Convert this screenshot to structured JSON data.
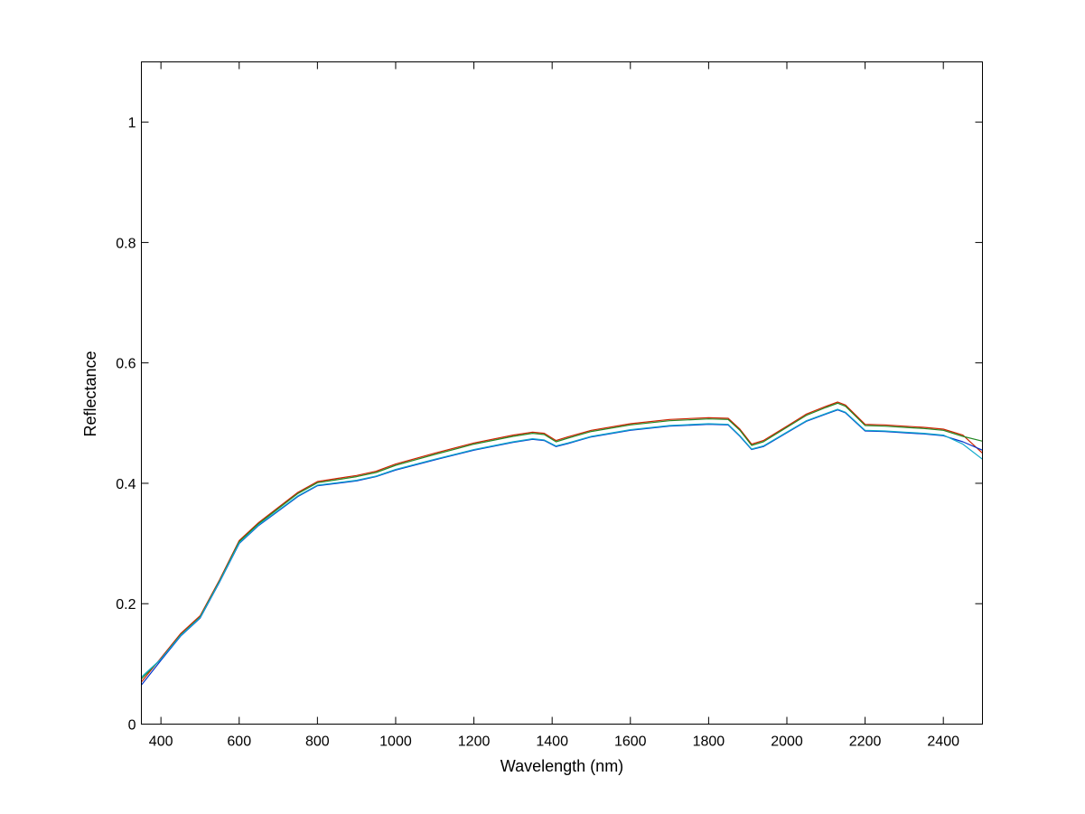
{
  "chart_data": {
    "type": "line",
    "title": "",
    "xlabel": "Wavelength (nm)",
    "ylabel": "Reflectance",
    "xlim": [
      350,
      2500
    ],
    "ylim": [
      0,
      1.1
    ],
    "x_ticks": [
      400,
      600,
      800,
      1000,
      1200,
      1400,
      1600,
      1800,
      2000,
      2200,
      2400
    ],
    "y_ticks": [
      0,
      0.2,
      0.4,
      0.6,
      0.8,
      1
    ],
    "y_tick_labels": [
      "0",
      "0.2",
      "0.4",
      "0.6",
      "0.8",
      "1"
    ],
    "grid": false,
    "legend": "none",
    "x": [
      350,
      400,
      450,
      500,
      550,
      600,
      650,
      700,
      750,
      800,
      850,
      900,
      950,
      1000,
      1100,
      1200,
      1300,
      1350,
      1380,
      1410,
      1440,
      1500,
      1600,
      1700,
      1800,
      1850,
      1880,
      1910,
      1940,
      2000,
      2050,
      2100,
      2130,
      2150,
      2200,
      2250,
      2300,
      2350,
      2400,
      2450,
      2500
    ],
    "series": [
      {
        "color": "#cc2200",
        "values": [
          0.07,
          0.11,
          0.15,
          0.18,
          0.24,
          0.305,
          0.335,
          0.36,
          0.385,
          0.403,
          0.408,
          0.413,
          0.42,
          0.432,
          0.45,
          0.467,
          0.48,
          0.485,
          0.483,
          0.471,
          0.477,
          0.488,
          0.499,
          0.506,
          0.509,
          0.508,
          0.49,
          0.465,
          0.471,
          0.495,
          0.515,
          0.528,
          0.535,
          0.53,
          0.498,
          0.497,
          0.495,
          0.493,
          0.49,
          0.48,
          0.45
        ]
      },
      {
        "color": "#228822",
        "values": [
          0.075,
          0.108,
          0.148,
          0.178,
          0.238,
          0.303,
          0.333,
          0.358,
          0.383,
          0.401,
          0.406,
          0.411,
          0.418,
          0.43,
          0.448,
          0.465,
          0.478,
          0.483,
          0.481,
          0.469,
          0.475,
          0.486,
          0.497,
          0.504,
          0.507,
          0.506,
          0.488,
          0.463,
          0.469,
          0.493,
          0.513,
          0.526,
          0.533,
          0.528,
          0.496,
          0.495,
          0.493,
          0.491,
          0.488,
          0.478,
          0.47
        ]
      },
      {
        "color": "#0033cc",
        "values": [
          0.065,
          0.106,
          0.146,
          0.176,
          0.236,
          0.3,
          0.33,
          0.354,
          0.378,
          0.396,
          0.4,
          0.404,
          0.411,
          0.422,
          0.439,
          0.455,
          0.468,
          0.473,
          0.471,
          0.461,
          0.466,
          0.477,
          0.488,
          0.495,
          0.498,
          0.497,
          0.478,
          0.456,
          0.461,
          0.484,
          0.503,
          0.515,
          0.522,
          0.517,
          0.487,
          0.486,
          0.484,
          0.482,
          0.479,
          0.469,
          0.455
        ]
      },
      {
        "color": "#11aacc",
        "values": [
          0.078,
          0.108,
          0.147,
          0.177,
          0.237,
          0.301,
          0.331,
          0.355,
          0.379,
          0.397,
          0.401,
          0.405,
          0.412,
          0.423,
          0.44,
          0.456,
          0.469,
          0.474,
          0.472,
          0.462,
          0.467,
          0.478,
          0.489,
          0.496,
          0.499,
          0.498,
          0.479,
          0.457,
          0.462,
          0.485,
          0.504,
          0.516,
          0.523,
          0.518,
          0.488,
          0.487,
          0.485,
          0.483,
          0.48,
          0.465,
          0.44
        ]
      }
    ]
  }
}
